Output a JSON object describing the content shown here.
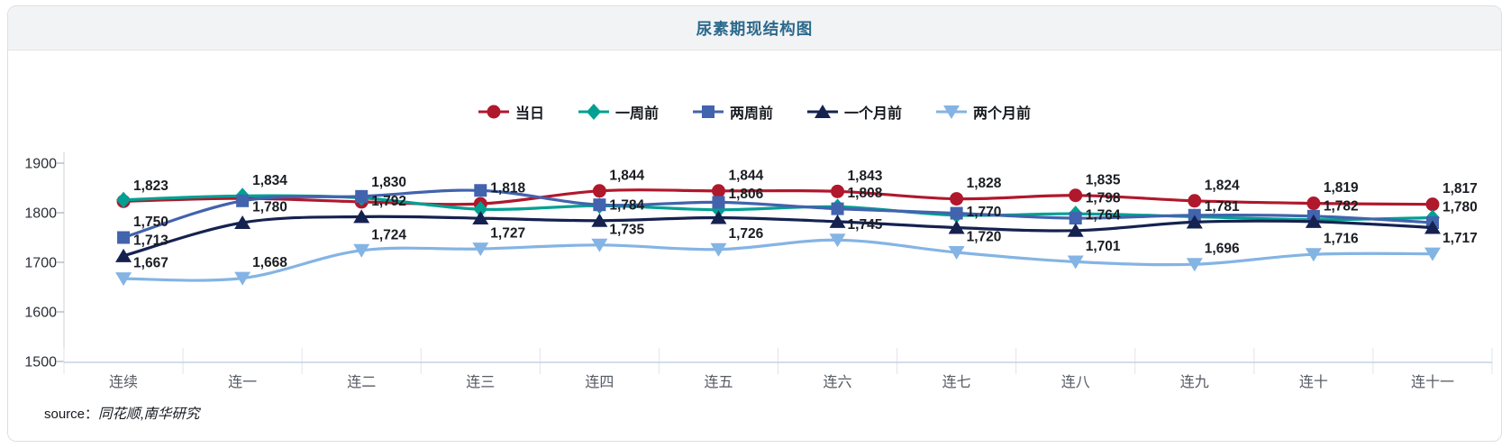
{
  "card": {
    "title": "尿素期现结构图",
    "source_prefix": "source：",
    "source_value": "同花顺,南华研究"
  },
  "chart_data": {
    "type": "line",
    "title": "尿素期现结构图",
    "smooth": true,
    "grid": false,
    "legend_position": "top",
    "categories": [
      "连续",
      "连一",
      "连二",
      "连三",
      "连四",
      "连五",
      "连六",
      "连七",
      "连八",
      "连九",
      "连十",
      "连十一"
    ],
    "xlabel": "",
    "ylabel": "",
    "ylim": [
      1500,
      1900
    ],
    "y_ticks": [
      1900,
      1800,
      1700,
      1600,
      1500
    ],
    "series": [
      {
        "name": "当日",
        "marker": "circle",
        "color": "#b0182c",
        "values": [
          1823,
          1829,
          1822,
          1818,
          1844,
          1844,
          1843,
          1828,
          1835,
          1824,
          1819,
          1817
        ],
        "labels": [
          1823,
          null,
          null,
          1818,
          1844,
          1844,
          1843,
          1828,
          1835,
          1824,
          1819,
          1817
        ]
      },
      {
        "name": "一周前",
        "marker": "diamond",
        "color": "#00a092",
        "values": [
          1826,
          1834,
          1830,
          1807,
          1814,
          1806,
          1812,
          1795,
          1798,
          1792,
          1786,
          1790
        ],
        "labels": [
          null,
          1834,
          1830,
          null,
          null,
          1806,
          null,
          null,
          1798,
          null,
          null,
          null
        ]
      },
      {
        "name": "两周前",
        "marker": "square",
        "color": "#4263ad",
        "values": [
          1750,
          1824,
          1833,
          1845,
          1816,
          1821,
          1808,
          1799,
          1789,
          1795,
          1793,
          1780
        ],
        "labels": [
          1750,
          null,
          null,
          null,
          null,
          null,
          1808,
          null,
          null,
          null,
          null,
          1780
        ]
      },
      {
        "name": "一个月前",
        "marker": "triangle-up",
        "color": "#152250",
        "values": [
          1713,
          1780,
          1792,
          1789,
          1784,
          1790,
          1782,
          1770,
          1764,
          1781,
          1782,
          1770
        ],
        "labels": [
          1713,
          1780,
          1792,
          null,
          1784,
          null,
          null,
          1770,
          1764,
          1781,
          1782,
          null
        ]
      },
      {
        "name": "两个月前",
        "marker": "triangle-down",
        "color": "#84b4e4",
        "values": [
          1667,
          1668,
          1724,
          1727,
          1735,
          1726,
          1745,
          1720,
          1701,
          1696,
          1716,
          1717
        ],
        "labels": [
          1667,
          1668,
          1724,
          1727,
          1735,
          1726,
          1745,
          1720,
          1701,
          1696,
          1716,
          1717
        ]
      }
    ]
  }
}
